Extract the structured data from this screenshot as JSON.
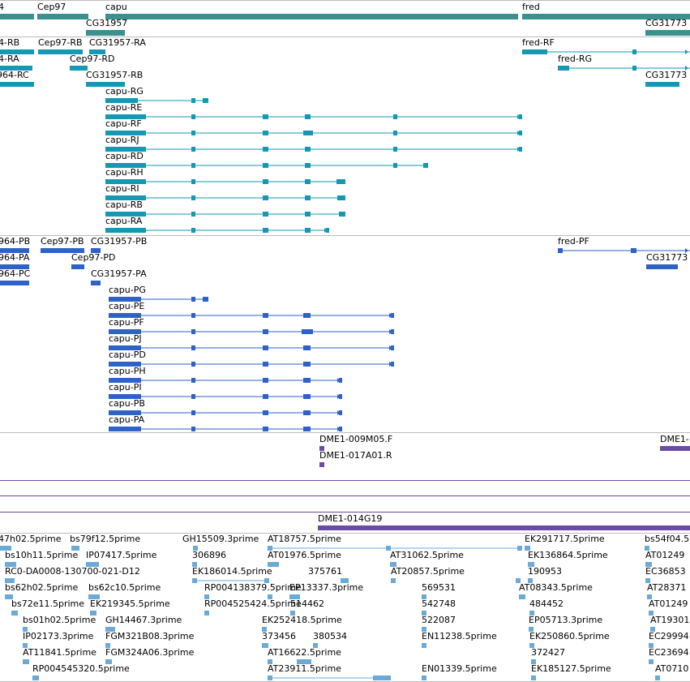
{
  "colors": {
    "gene": "#3a8f8f",
    "transcript": "#1697b3",
    "protein": "#2e62c7",
    "clone": "#6a4ca7",
    "est": "#6aaad8",
    "separator": "#bcbcbc"
  },
  "tracks": {
    "genes": {
      "rows": [
        [
          {
            "label": "4",
            "intron": false,
            "arrow": false,
            "blocks": []
          },
          {
            "label": "Cep97",
            "intron": false,
            "arrow": false,
            "blocks": []
          },
          {
            "label": "capu",
            "intron": false,
            "arrow": false,
            "blocks": []
          },
          {
            "label": "fred",
            "intron": false,
            "arrow": false,
            "blocks": []
          }
        ],
        [
          {
            "label": "CG31957",
            "intron": false,
            "arrow": false,
            "blocks": []
          },
          {
            "label": "CG31773",
            "intron": false,
            "arrow": false,
            "blocks": []
          }
        ]
      ]
    },
    "transcripts": {
      "rows": [
        [
          {
            "label": "4-RB",
            "intron": true,
            "arrow": false,
            "blocks": []
          },
          {
            "label": "Cep97-RB",
            "intron": true,
            "arrow": false,
            "blocks": []
          },
          {
            "label": "CG31957-RA",
            "intron": true,
            "arrow": false,
            "blocks": []
          },
          {
            "label": "fred-RF",
            "intron": true,
            "arrow": true,
            "blocks": []
          }
        ],
        [
          {
            "label": "4-RA",
            "intron": true,
            "arrow": false,
            "blocks": []
          },
          {
            "label": "Cep97-RD",
            "intron": true,
            "arrow": false,
            "blocks": []
          },
          {
            "label": "fred-RG",
            "intron": true,
            "arrow": true,
            "blocks": []
          }
        ],
        [
          {
            "label": "964-RC",
            "intron": true,
            "arrow": false,
            "blocks": []
          },
          {
            "label": "CG31957-RB",
            "intron": true,
            "arrow": false,
            "blocks": []
          },
          {
            "label": "CG31773",
            "intron": true,
            "arrow": false,
            "blocks": []
          }
        ],
        [
          {
            "label": "capu-RG",
            "intron": true,
            "arrow": true,
            "blocks": []
          }
        ],
        [
          {
            "label": "capu-RE",
            "intron": true,
            "arrow": true,
            "blocks": []
          }
        ],
        [
          {
            "label": "capu-RF",
            "intron": true,
            "arrow": true,
            "blocks": []
          }
        ],
        [
          {
            "label": "capu-RJ",
            "intron": true,
            "arrow": true,
            "blocks": []
          }
        ],
        [
          {
            "label": "capu-RD",
            "intron": true,
            "arrow": true,
            "blocks": []
          }
        ],
        [
          {
            "label": "capu-RH",
            "intron": true,
            "arrow": true,
            "blocks": []
          }
        ],
        [
          {
            "label": "capu-RI",
            "intron": true,
            "arrow": true,
            "blocks": []
          }
        ],
        [
          {
            "label": "capu-RB",
            "intron": true,
            "arrow": true,
            "blocks": []
          }
        ],
        [
          {
            "label": "capu-RA",
            "intron": true,
            "arrow": true,
            "blocks": []
          }
        ]
      ]
    },
    "proteins": {
      "rows": [
        [
          {
            "label": "964-PB",
            "intron": true,
            "arrow": false,
            "blocks": []
          },
          {
            "label": "Cep97-PB",
            "intron": true,
            "arrow": false,
            "blocks": []
          },
          {
            "label": "CG31957-PB",
            "intron": true,
            "arrow": false,
            "blocks": []
          },
          {
            "label": "fred-PF",
            "intron": true,
            "arrow": true,
            "blocks": []
          }
        ],
        [
          {
            "label": "964-PA",
            "intron": true,
            "arrow": false,
            "blocks": []
          },
          {
            "label": "Cep97-PD",
            "intron": true,
            "arrow": false,
            "blocks": []
          },
          {
            "label": "CG31773",
            "intron": true,
            "arrow": false,
            "blocks": []
          }
        ],
        [
          {
            "label": "964-PC",
            "intron": true,
            "arrow": false,
            "blocks": []
          },
          {
            "label": "CG31957-PA",
            "intron": true,
            "arrow": false,
            "blocks": []
          }
        ],
        [
          {
            "label": "capu-PG",
            "intron": true,
            "arrow": true,
            "blocks": []
          }
        ],
        [
          {
            "label": "capu-PE",
            "intron": true,
            "arrow": true,
            "blocks": []
          }
        ],
        [
          {
            "label": "capu-PF",
            "intron": true,
            "arrow": true,
            "blocks": []
          }
        ],
        [
          {
            "label": "capu-PJ",
            "intron": true,
            "arrow": true,
            "blocks": []
          }
        ],
        [
          {
            "label": "capu-PD",
            "intron": true,
            "arrow": true,
            "blocks": []
          }
        ],
        [
          {
            "label": "capu-PH",
            "intron": true,
            "arrow": true,
            "blocks": []
          }
        ],
        [
          {
            "label": "capu-PI",
            "intron": true,
            "arrow": true,
            "blocks": []
          }
        ],
        [
          {
            "label": "capu-PB",
            "intron": true,
            "arrow": true,
            "blocks": []
          }
        ],
        [
          {
            "label": "capu-PA",
            "intron": true,
            "arrow": true,
            "blocks": []
          }
        ]
      ]
    },
    "clones": {
      "rows": [
        [
          {
            "label": "DME1-009M05.F",
            "intron": false,
            "arrow": false,
            "blocks": []
          },
          {
            "label": "DME1-",
            "intron": false,
            "arrow": false,
            "blocks": []
          }
        ],
        [
          {
            "label": "DME1-017A01.R",
            "intron": false,
            "arrow": false,
            "blocks": []
          }
        ]
      ]
    },
    "clone_lines": {
      "rows": []
    },
    "bac": {
      "rows": [
        [
          {
            "label": "DME1-014G19",
            "intron": false,
            "arrow": false,
            "blocks": []
          }
        ]
      ]
    },
    "ests": {
      "rows": [
        [
          {
            "label": "47h02.5prime",
            "intron": false,
            "arrow": false,
            "blocks": []
          },
          {
            "label": "bs79f12.5prime",
            "intron": false,
            "arrow": false,
            "blocks": []
          },
          {
            "label": "GH15509.3prime",
            "intron": false,
            "arrow": false,
            "blocks": []
          },
          {
            "label": "AT18757.5prime",
            "intron": true,
            "arrow": false,
            "blocks": []
          },
          {
            "label": "EK291717.5prime",
            "intron": false,
            "arrow": false,
            "blocks": []
          },
          {
            "label": "bs54f04.5",
            "intron": false,
            "arrow": false,
            "blocks": []
          }
        ],
        [
          {
            "label": "bs10h11.5prime",
            "intron": false,
            "arrow": false,
            "blocks": []
          },
          {
            "label": "IP07417.5prime",
            "intron": false,
            "arrow": false,
            "blocks": []
          },
          {
            "label": "306896",
            "intron": false,
            "arrow": false,
            "blocks": []
          },
          {
            "label": "AT01976.5prime",
            "intron": false,
            "arrow": false,
            "blocks": []
          },
          {
            "label": "AT31062.5prime",
            "intron": false,
            "arrow": false,
            "blocks": []
          },
          {
            "label": "EK136864.5prime",
            "intron": false,
            "arrow": false,
            "blocks": []
          },
          {
            "label": "AT01249",
            "intron": false,
            "arrow": false,
            "blocks": []
          }
        ],
        [
          {
            "label": "RC0-DA0008-130700-021-D12",
            "intron": false,
            "arrow": false,
            "blocks": []
          },
          {
            "label": "EK186014.5prime",
            "intron": true,
            "arrow": false,
            "blocks": []
          },
          {
            "label": "375761",
            "intron": false,
            "arrow": false,
            "blocks": []
          },
          {
            "label": "AT20857.5prime",
            "intron": false,
            "arrow": false,
            "blocks": []
          },
          {
            "label": "190953",
            "intron": false,
            "arrow": false,
            "blocks": []
          },
          {
            "label": "EC36853",
            "intron": false,
            "arrow": false,
            "blocks": []
          }
        ],
        [
          {
            "label": "bs62h02.5prime",
            "intron": false,
            "arrow": false,
            "blocks": []
          },
          {
            "label": "bs62c10.5prime",
            "intron": false,
            "arrow": false,
            "blocks": []
          },
          {
            "label": "RP004138379.5prime",
            "intron": false,
            "arrow": false,
            "blocks": []
          },
          {
            "label": "EP13337.3prime",
            "intron": false,
            "arrow": false,
            "blocks": []
          },
          {
            "label": "569531",
            "intron": false,
            "arrow": false,
            "blocks": []
          },
          {
            "label": "AT08343.5prime",
            "intron": false,
            "arrow": false,
            "blocks": []
          },
          {
            "label": "AT28371",
            "intron": false,
            "arrow": false,
            "blocks": []
          }
        ],
        [
          {
            "label": "bs72e11.5prime",
            "intron": false,
            "arrow": false,
            "blocks": []
          },
          {
            "label": "EK219345.5prime",
            "intron": false,
            "arrow": false,
            "blocks": []
          },
          {
            "label": "RP004525424.5prime",
            "intron": false,
            "arrow": false,
            "blocks": []
          },
          {
            "label": "514462",
            "intron": false,
            "arrow": false,
            "blocks": []
          },
          {
            "label": "542748",
            "intron": false,
            "arrow": false,
            "blocks": []
          },
          {
            "label": "484452",
            "intron": false,
            "arrow": false,
            "blocks": []
          },
          {
            "label": "AT01249",
            "intron": false,
            "arrow": false,
            "blocks": []
          }
        ],
        [
          {
            "label": "bs01h02.5prime",
            "intron": false,
            "arrow": false,
            "blocks": []
          },
          {
            "label": "GH14467.3prime",
            "intron": false,
            "arrow": false,
            "blocks": []
          },
          {
            "label": "EK252418.5prime",
            "intron": false,
            "arrow": false,
            "blocks": []
          },
          {
            "label": "522087",
            "intron": false,
            "arrow": false,
            "blocks": []
          },
          {
            "label": "EP05713.3prime",
            "intron": false,
            "arrow": false,
            "blocks": []
          },
          {
            "label": "AT19301",
            "intron": false,
            "arrow": false,
            "blocks": []
          }
        ],
        [
          {
            "label": "IP02173.3prime",
            "intron": false,
            "arrow": false,
            "blocks": []
          },
          {
            "label": "FGM321B08.3prime",
            "intron": false,
            "arrow": false,
            "blocks": []
          },
          {
            "label": "373456",
            "intron": false,
            "arrow": false,
            "blocks": []
          },
          {
            "label": "380534",
            "intron": false,
            "arrow": false,
            "blocks": []
          },
          {
            "label": "EN11238.5prime",
            "intron": false,
            "arrow": false,
            "blocks": []
          },
          {
            "label": "EK250860.5prime",
            "intron": false,
            "arrow": false,
            "blocks": []
          },
          {
            "label": "EC29994",
            "intron": false,
            "arrow": false,
            "blocks": []
          }
        ],
        [
          {
            "label": "AT11841.5prime",
            "intron": false,
            "arrow": false,
            "blocks": []
          },
          {
            "label": "FGM324A06.3prime",
            "intron": false,
            "arrow": false,
            "blocks": []
          },
          {
            "label": "AT16622.5prime",
            "intron": false,
            "arrow": false,
            "blocks": []
          },
          {
            "label": "372427",
            "intron": false,
            "arrow": false,
            "blocks": []
          },
          {
            "label": "EC23694",
            "intron": false,
            "arrow": false,
            "blocks": []
          }
        ],
        [
          {
            "label": "RP004545320.5prime",
            "intron": false,
            "arrow": false,
            "blocks": []
          },
          {
            "label": "AT23911.5prime",
            "intron": true,
            "arrow": false,
            "blocks": []
          },
          {
            "label": "EN01339.5prime",
            "intron": false,
            "arrow": false,
            "blocks": []
          },
          {
            "label": "EK185127.5prime",
            "intron": false,
            "arrow": false,
            "blocks": []
          },
          {
            "label": "AT0710",
            "intron": false,
            "arrow": false,
            "blocks": []
          }
        ]
      ]
    }
  }
}
